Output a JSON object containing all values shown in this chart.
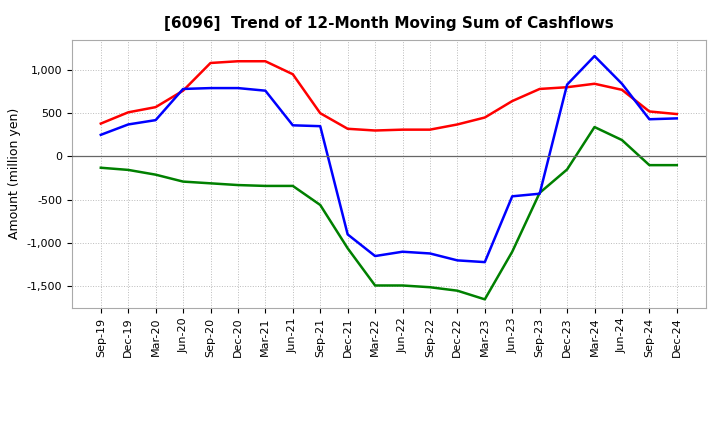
{
  "title": "[6096]  Trend of 12-Month Moving Sum of Cashflows",
  "ylabel": "Amount (million yen)",
  "x_labels": [
    "Sep-19",
    "Dec-19",
    "Mar-20",
    "Jun-20",
    "Sep-20",
    "Dec-20",
    "Mar-21",
    "Jun-21",
    "Sep-21",
    "Dec-21",
    "Mar-22",
    "Jun-22",
    "Sep-22",
    "Dec-22",
    "Mar-23",
    "Jun-23",
    "Sep-23",
    "Dec-23",
    "Mar-24",
    "Jun-24",
    "Sep-24",
    "Dec-24"
  ],
  "operating_cashflow": [
    380,
    510,
    570,
    760,
    1080,
    1100,
    1100,
    950,
    500,
    320,
    300,
    310,
    310,
    370,
    450,
    640,
    780,
    800,
    840,
    770,
    520,
    490
  ],
  "investing_cashflow": [
    -130,
    -155,
    -210,
    -290,
    -310,
    -330,
    -340,
    -340,
    -560,
    -1060,
    -1490,
    -1490,
    -1510,
    -1550,
    -1650,
    -1100,
    -420,
    -150,
    340,
    190,
    -100,
    -100
  ],
  "free_cashflow": [
    250,
    370,
    420,
    780,
    790,
    790,
    760,
    360,
    350,
    -900,
    -1150,
    -1100,
    -1120,
    -1200,
    -1220,
    -460,
    -430,
    830,
    1160,
    840,
    430,
    440
  ],
  "operating_color": "#ff0000",
  "investing_color": "#008000",
  "free_color": "#0000ff",
  "ylim": [
    -1750,
    1350
  ],
  "yticks": [
    -1500,
    -1000,
    -500,
    0,
    500,
    1000
  ],
  "background_color": "#ffffff",
  "grid_color": "#aaaaaa",
  "title_fontsize": 11,
  "axis_fontsize": 9,
  "tick_fontsize": 8,
  "legend_fontsize": 9
}
